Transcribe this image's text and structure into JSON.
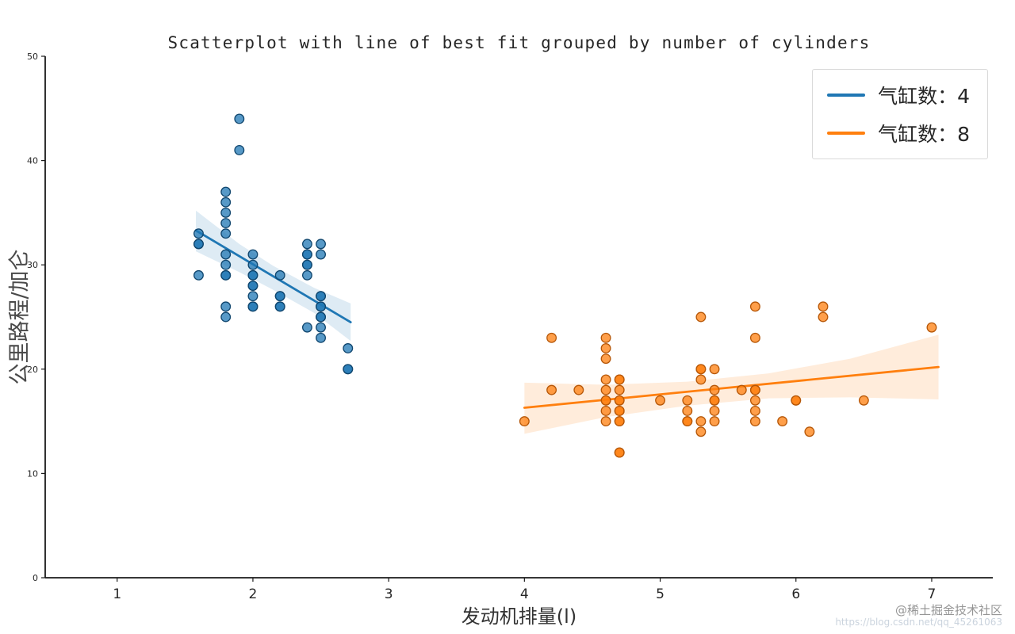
{
  "chart_data": {
    "type": "scatter",
    "title": "Scatterplot with line of best fit grouped by number of cylinders",
    "xlabel": "发动机排量(l)",
    "ylabel": "公里路程/加仑",
    "xlim": [
      0.47,
      7.45
    ],
    "ylim": [
      0,
      50
    ],
    "x_ticks": [
      1,
      2,
      3,
      4,
      5,
      6,
      7
    ],
    "y_ticks": [
      0,
      10,
      20,
      30,
      40,
      50
    ],
    "grid": false,
    "legend_position": "upper right",
    "series": [
      {
        "name": "气缸数：4",
        "color": "#1f77b4",
        "edge_color": "#10466e",
        "points": [
          [
            1.6,
            33
          ],
          [
            1.6,
            32
          ],
          [
            1.6,
            32
          ],
          [
            1.6,
            29
          ],
          [
            1.8,
            37
          ],
          [
            1.8,
            36
          ],
          [
            1.8,
            35
          ],
          [
            1.8,
            34
          ],
          [
            1.8,
            33
          ],
          [
            1.8,
            31
          ],
          [
            1.8,
            30
          ],
          [
            1.8,
            29
          ],
          [
            1.8,
            29
          ],
          [
            1.8,
            26
          ],
          [
            1.8,
            25
          ],
          [
            1.9,
            44
          ],
          [
            1.9,
            41
          ],
          [
            2.0,
            31
          ],
          [
            2.0,
            30
          ],
          [
            2.0,
            29
          ],
          [
            2.0,
            29
          ],
          [
            2.0,
            28
          ],
          [
            2.0,
            28
          ],
          [
            2.0,
            27
          ],
          [
            2.0,
            26
          ],
          [
            2.0,
            26
          ],
          [
            2.2,
            29
          ],
          [
            2.2,
            27
          ],
          [
            2.2,
            27
          ],
          [
            2.2,
            26
          ],
          [
            2.2,
            26
          ],
          [
            2.4,
            32
          ],
          [
            2.4,
            31
          ],
          [
            2.4,
            31
          ],
          [
            2.4,
            30
          ],
          [
            2.4,
            30
          ],
          [
            2.4,
            29
          ],
          [
            2.4,
            24
          ],
          [
            2.5,
            32
          ],
          [
            2.5,
            31
          ],
          [
            2.5,
            27
          ],
          [
            2.5,
            27
          ],
          [
            2.5,
            26
          ],
          [
            2.5,
            26
          ],
          [
            2.5,
            25
          ],
          [
            2.5,
            25
          ],
          [
            2.5,
            24
          ],
          [
            2.5,
            23
          ],
          [
            2.7,
            22
          ],
          [
            2.7,
            20
          ],
          [
            2.7,
            20
          ]
        ],
        "trend": {
          "x": [
            1.58,
            2.72
          ],
          "y": [
            33.3,
            24.5
          ]
        },
        "ci": {
          "x": [
            1.58,
            1.9,
            2.15,
            2.45,
            2.72
          ],
          "upper": [
            35.2,
            32.0,
            29.9,
            27.8,
            26.3
          ],
          "lower": [
            31.3,
            29.3,
            27.6,
            25.4,
            22.7
          ]
        }
      },
      {
        "name": "气缸数：8",
        "color": "#ff7f0e",
        "edge_color": "#b65708",
        "points": [
          [
            4.0,
            15
          ],
          [
            4.2,
            23
          ],
          [
            4.2,
            18
          ],
          [
            4.4,
            18
          ],
          [
            4.6,
            23
          ],
          [
            4.6,
            22
          ],
          [
            4.6,
            21
          ],
          [
            4.6,
            19
          ],
          [
            4.6,
            18
          ],
          [
            4.6,
            17
          ],
          [
            4.6,
            17
          ],
          [
            4.6,
            16
          ],
          [
            4.6,
            15
          ],
          [
            4.7,
            19
          ],
          [
            4.7,
            19
          ],
          [
            4.7,
            18
          ],
          [
            4.7,
            17
          ],
          [
            4.7,
            17
          ],
          [
            4.7,
            16
          ],
          [
            4.7,
            16
          ],
          [
            4.7,
            15
          ],
          [
            4.7,
            15
          ],
          [
            4.7,
            12
          ],
          [
            4.7,
            12
          ],
          [
            5.0,
            17
          ],
          [
            5.2,
            17
          ],
          [
            5.2,
            16
          ],
          [
            5.2,
            15
          ],
          [
            5.2,
            15
          ],
          [
            5.3,
            25
          ],
          [
            5.3,
            20
          ],
          [
            5.3,
            20
          ],
          [
            5.3,
            19
          ],
          [
            5.3,
            15
          ],
          [
            5.3,
            14
          ],
          [
            5.4,
            20
          ],
          [
            5.4,
            18
          ],
          [
            5.4,
            17
          ],
          [
            5.4,
            17
          ],
          [
            5.4,
            16
          ],
          [
            5.4,
            15
          ],
          [
            5.6,
            18
          ],
          [
            5.7,
            26
          ],
          [
            5.7,
            23
          ],
          [
            5.7,
            18
          ],
          [
            5.7,
            18
          ],
          [
            5.7,
            17
          ],
          [
            5.7,
            16
          ],
          [
            5.7,
            15
          ],
          [
            5.9,
            15
          ],
          [
            6.0,
            17
          ],
          [
            6.0,
            17
          ],
          [
            6.1,
            14
          ],
          [
            6.2,
            26
          ],
          [
            6.2,
            25
          ],
          [
            6.5,
            17
          ],
          [
            7.0,
            24
          ]
        ],
        "trend": {
          "x": [
            4.0,
            7.05
          ],
          "y": [
            16.3,
            20.2
          ]
        },
        "ci": {
          "x": [
            4.0,
            4.6,
            5.2,
            5.8,
            6.4,
            7.05
          ],
          "upper": [
            18.7,
            18.5,
            18.8,
            19.6,
            21.0,
            23.3
          ],
          "lower": [
            13.8,
            15.4,
            16.5,
            17.2,
            17.3,
            17.1
          ]
        }
      }
    ]
  },
  "watermark": {
    "line1": "@稀土掘金技术社区",
    "line2": "https://blog.csdn.net/qq_45261063"
  }
}
